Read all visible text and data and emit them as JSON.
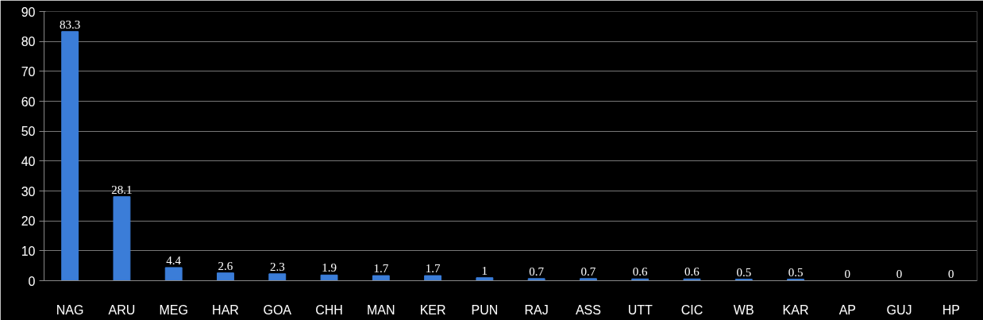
{
  "chart_data": {
    "type": "bar",
    "categories": [
      "NAG",
      "ARU",
      "MEG",
      "HAR",
      "GOA",
      "CHH",
      "MAN",
      "KER",
      "PUN",
      "RAJ",
      "ASS",
      "UTT",
      "CIC",
      "WB",
      "KAR",
      "AP",
      "GUJ",
      "HP"
    ],
    "values": [
      83.3,
      28.1,
      4.4,
      2.6,
      2.3,
      1.9,
      1.7,
      1.7,
      1,
      0.7,
      0.7,
      0.6,
      0.6,
      0.5,
      0.5,
      0,
      0,
      0
    ],
    "color": "#3b7dd8",
    "ylim": [
      0,
      90
    ],
    "yticks": [
      0,
      10,
      20,
      30,
      40,
      50,
      60,
      70,
      80,
      90
    ],
    "grid": "y",
    "data_labels": true
  }
}
